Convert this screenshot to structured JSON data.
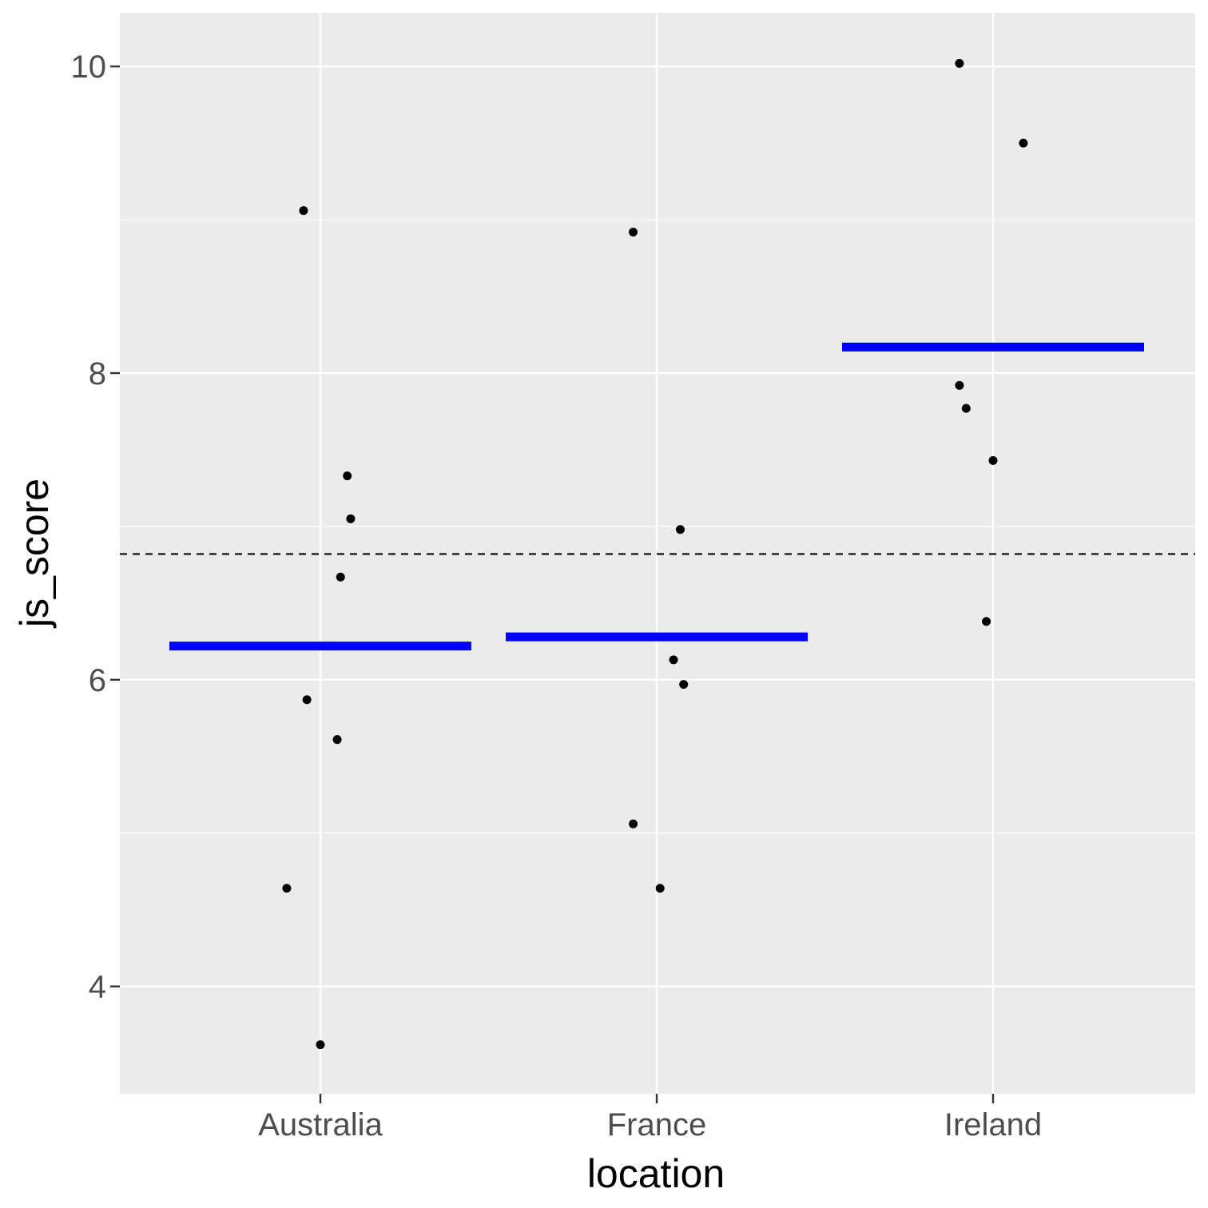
{
  "chart_data": {
    "type": "scatter",
    "xlabel": "location",
    "ylabel": "js_score",
    "categories": [
      "Australia",
      "France",
      "Ireland"
    ],
    "ylim": [
      3.3,
      10.35
    ],
    "yticks": [
      4,
      6,
      8,
      10
    ],
    "grid": true,
    "points": [
      {
        "category": "Australia",
        "jitter": -0.05,
        "y": 9.06
      },
      {
        "category": "Australia",
        "jitter": 0.08,
        "y": 7.33
      },
      {
        "category": "Australia",
        "jitter": 0.09,
        "y": 7.05
      },
      {
        "category": "Australia",
        "jitter": 0.06,
        "y": 6.67
      },
      {
        "category": "Australia",
        "jitter": -0.04,
        "y": 5.87
      },
      {
        "category": "Australia",
        "jitter": 0.05,
        "y": 5.61
      },
      {
        "category": "Australia",
        "jitter": -0.1,
        "y": 4.64
      },
      {
        "category": "Australia",
        "jitter": 0.0,
        "y": 3.62
      },
      {
        "category": "France",
        "jitter": -0.07,
        "y": 8.92
      },
      {
        "category": "France",
        "jitter": 0.07,
        "y": 6.98
      },
      {
        "category": "France",
        "jitter": 0.05,
        "y": 6.13
      },
      {
        "category": "France",
        "jitter": 0.08,
        "y": 5.97
      },
      {
        "category": "France",
        "jitter": -0.07,
        "y": 5.06
      },
      {
        "category": "France",
        "jitter": 0.01,
        "y": 4.64
      },
      {
        "category": "Ireland",
        "jitter": -0.1,
        "y": 10.02
      },
      {
        "category": "Ireland",
        "jitter": 0.09,
        "y": 9.5
      },
      {
        "category": "Ireland",
        "jitter": -0.1,
        "y": 7.92
      },
      {
        "category": "Ireland",
        "jitter": -0.08,
        "y": 7.77
      },
      {
        "category": "Ireland",
        "jitter": 0.0,
        "y": 7.43
      },
      {
        "category": "Ireland",
        "jitter": -0.02,
        "y": 6.38
      }
    ],
    "group_means": [
      {
        "category": "Australia",
        "value": 6.22
      },
      {
        "category": "France",
        "value": 6.28
      },
      {
        "category": "Ireland",
        "value": 8.17
      }
    ],
    "overall_mean": 6.82,
    "colors": {
      "panel": "#ebebeb",
      "grid": "#ffffff",
      "point": "#000000",
      "mean_bar": "#0000ff",
      "reference_line": "#000000"
    }
  }
}
